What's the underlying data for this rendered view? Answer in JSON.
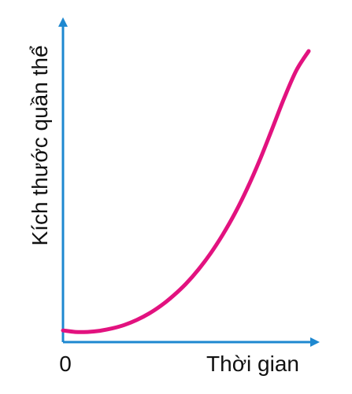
{
  "chart_data": {
    "type": "line",
    "title": "",
    "xlabel": "Thời gian",
    "ylabel": "Kích thước quần thể",
    "origin_label": "0",
    "grid": false,
    "legend": "none",
    "xlim": [
      0,
      10
    ],
    "ylim": [
      0,
      10
    ],
    "series": [
      {
        "values_x": [
          0,
          0.5,
          1,
          1.5,
          2,
          2.5,
          3,
          3.5,
          4,
          4.5,
          5,
          5.5,
          6,
          6.5,
          7,
          7.5,
          8,
          8.5,
          9,
          9.5,
          10
        ],
        "values_y": [
          0.4,
          0.35,
          0.35,
          0.39,
          0.47,
          0.59,
          0.76,
          0.98,
          1.26,
          1.6,
          2.0,
          2.48,
          3.04,
          3.69,
          4.43,
          5.28,
          6.24,
          7.3,
          8.38,
          9.34,
          10.0
        ],
        "color": "#e2127f"
      }
    ],
    "axis_color": "#1e88d0"
  }
}
